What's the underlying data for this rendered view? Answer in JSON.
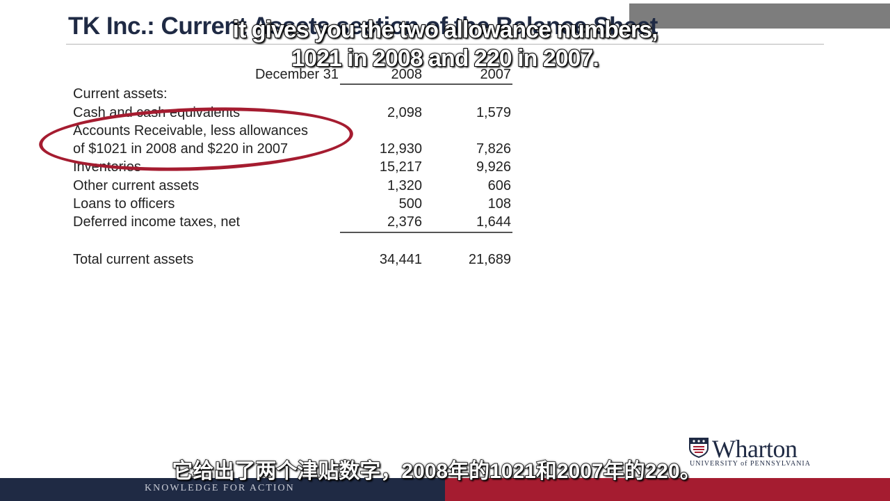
{
  "slide": {
    "title": "TK Inc.: Current Assets section of the Balance Sheet"
  },
  "balance_sheet": {
    "header_label": "December 31",
    "col_2008": "2008",
    "col_2007": "2007",
    "section_label": "Current assets:",
    "rows": [
      {
        "label": "Cash and cash equivalents",
        "v2008": "2,098",
        "v2007": "1,579"
      },
      {
        "label": "Accounts Receivable, less allowances",
        "v2008": "",
        "v2007": ""
      },
      {
        "label": "of $1021 in 2008 and $220 in 2007",
        "v2008": "12,930",
        "v2007": "7,826"
      },
      {
        "label": "Inventories",
        "v2008": "15,217",
        "v2007": "9,926"
      },
      {
        "label": "Other current assets",
        "v2008": "1,320",
        "v2007": "606"
      },
      {
        "label": "Loans to officers",
        "v2008": "500",
        "v2007": "108"
      },
      {
        "label": "Deferred income taxes, net",
        "v2008": "2,376",
        "v2007": "1,644"
      }
    ],
    "total": {
      "label": "Total current assets",
      "v2008": "34,441",
      "v2007": "21,689"
    }
  },
  "subtitles": {
    "en_line1": "it gives you the two allowance numbers,",
    "en_line2": "1021 in 2008 and 220 in 2007.",
    "cn": "它给出了两个津贴数字，2008年的1021和2007年的220。"
  },
  "branding": {
    "wordmark": "Wharton",
    "university": "UNIVERSITY of PENNSYLVANIA",
    "tagline": "KNOWLEDGE FOR ACTION",
    "colors": {
      "navy": "#1f2a44",
      "red": "#a51c30",
      "gray_bar": "#7d7d7d"
    }
  }
}
